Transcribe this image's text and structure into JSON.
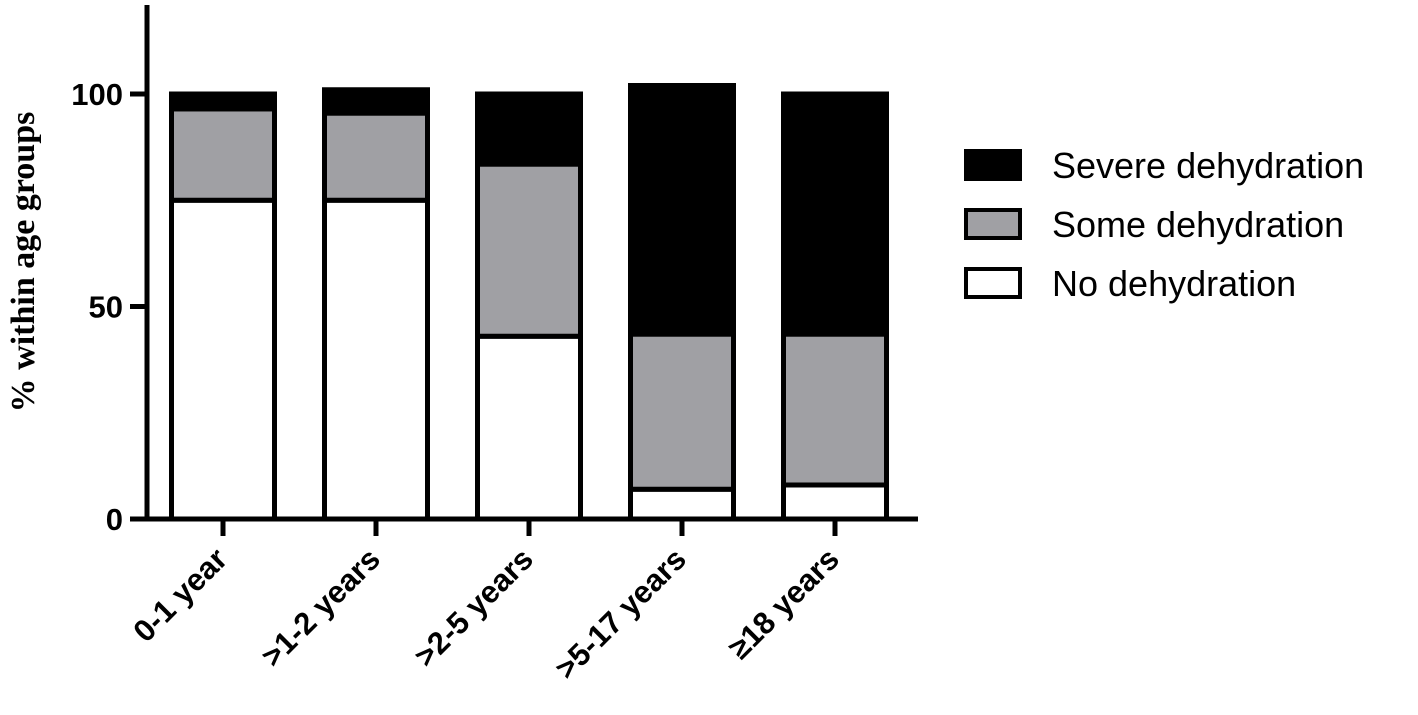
{
  "chart_data": {
    "type": "bar",
    "stacked": true,
    "ylabel": "% within age groups",
    "ylim": [
      0,
      120
    ],
    "yticks": [
      0,
      50,
      100
    ],
    "categories": [
      "0-1 year",
      ">1-2 years",
      ">2-5 years",
      ">5-17 years",
      "≥18 years"
    ],
    "series": [
      {
        "name": "No dehydration",
        "color": "#ffffff",
        "values": [
          75,
          75,
          43,
          7,
          8
        ]
      },
      {
        "name": "Some dehydration",
        "color": "#a0a0a4",
        "values": [
          21.5,
          20.5,
          40.5,
          36.5,
          35.5
        ]
      },
      {
        "name": "Severe dehydration",
        "color": "#000000",
        "values": [
          3.5,
          5.5,
          16.5,
          58.5,
          56.5
        ]
      }
    ],
    "legend_order": [
      "Severe dehydration",
      "Some dehydration",
      "No dehydration"
    ],
    "legend_position": "right",
    "grid": false
  }
}
